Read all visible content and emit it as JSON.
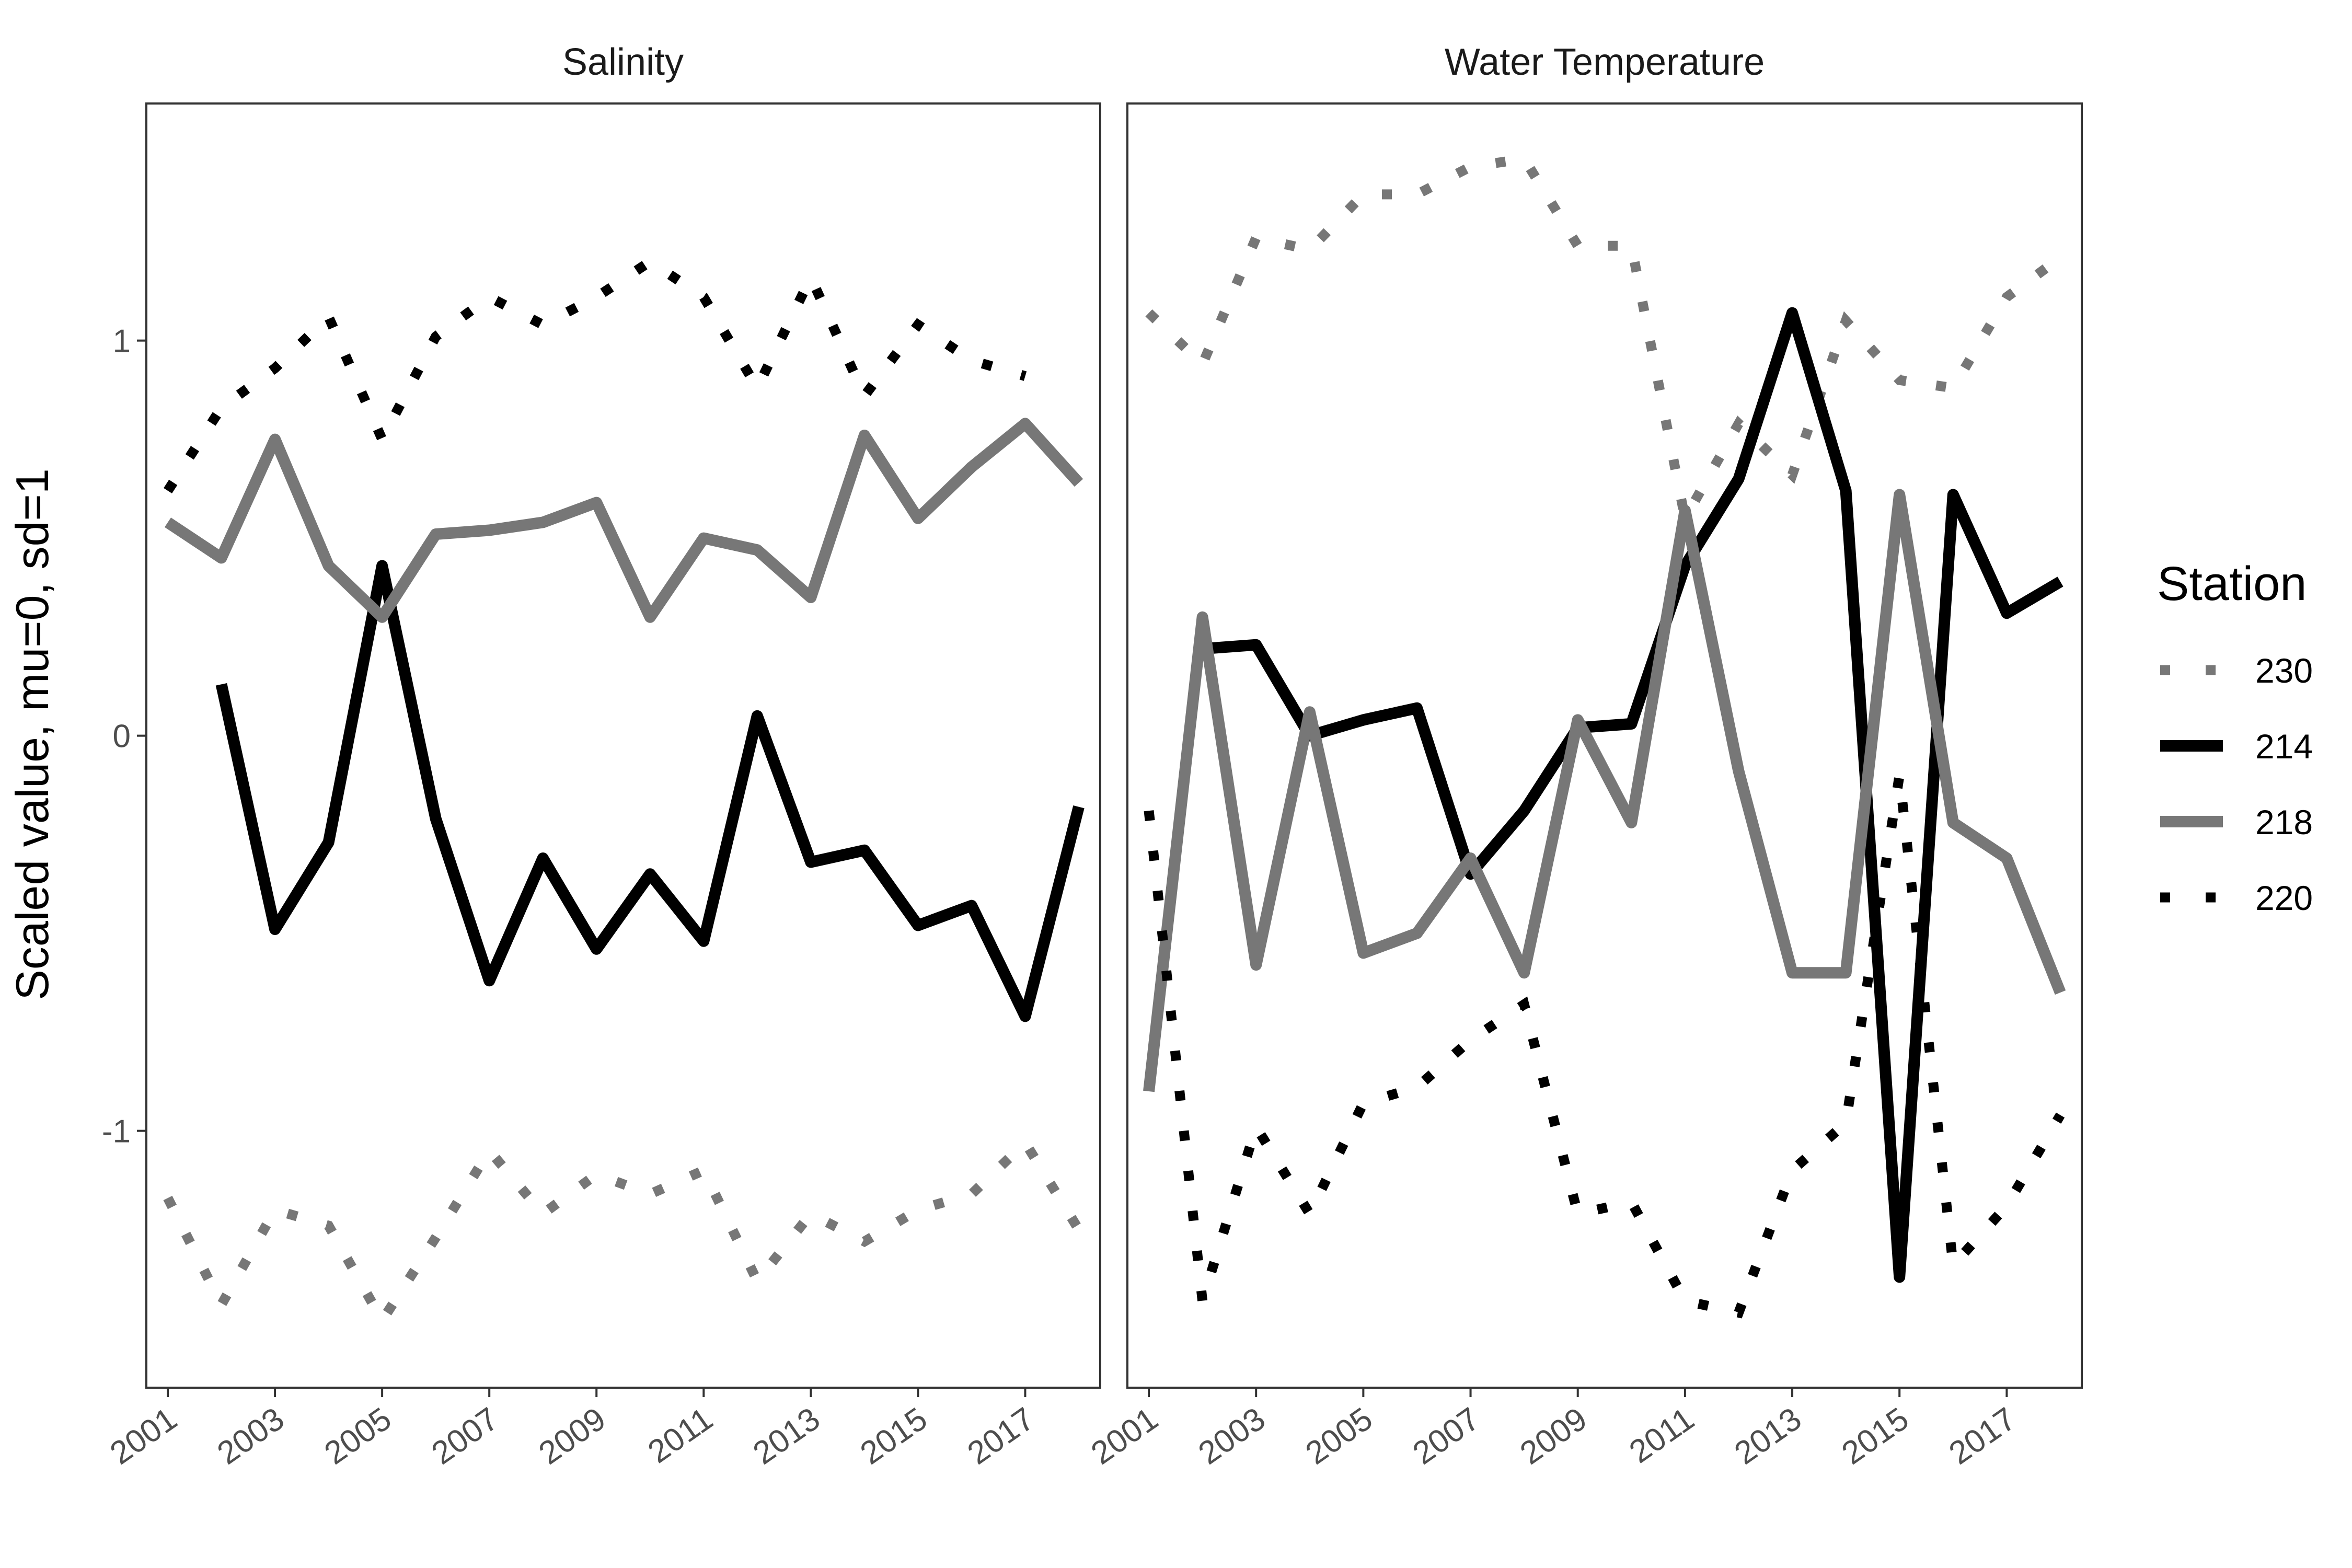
{
  "chart_data": {
    "type": "line",
    "ylabel": "Scaled value, mu=0, sd=1",
    "xlabel": "",
    "x": [
      2001,
      2002,
      2003,
      2004,
      2005,
      2006,
      2007,
      2008,
      2009,
      2010,
      2011,
      2012,
      2013,
      2014,
      2015,
      2016,
      2017,
      2018
    ],
    "x_tick_labels": [
      "2001",
      "2003",
      "2005",
      "2007",
      "2009",
      "2011",
      "2013",
      "2015",
      "2017"
    ],
    "x_tick_values": [
      2001,
      2003,
      2005,
      2007,
      2009,
      2011,
      2013,
      2015,
      2017
    ],
    "xlim": [
      2000.6,
      2018.4
    ],
    "y_tick_labels": [
      "1",
      "0",
      "-1"
    ],
    "y_tick_values": [
      1,
      0,
      -1
    ],
    "ylim": [
      -1.65,
      1.6
    ],
    "grid": false,
    "legend": {
      "title": "Station",
      "position": "right",
      "entries": [
        {
          "label": "230",
          "color": "#777777",
          "style": "dotted"
        },
        {
          "label": "214",
          "color": "#000000",
          "style": "solid"
        },
        {
          "label": "218",
          "color": "#777777",
          "style": "solid"
        },
        {
          "label": "220",
          "color": "#000000",
          "style": "dotted"
        }
      ]
    },
    "panels": [
      {
        "title": "Salinity",
        "series": [
          {
            "name": "230",
            "values": [
              -1.17,
              -1.44,
              -1.2,
              -1.24,
              -1.48,
              -1.27,
              -1.05,
              -1.21,
              -1.11,
              -1.16,
              -1.1,
              -1.38,
              -1.21,
              -1.28,
              -1.2,
              -1.16,
              -1.03,
              -1.25
            ]
          },
          {
            "name": "214",
            "values": [
              null,
              0.13,
              -0.49,
              -0.27,
              0.43,
              -0.21,
              -0.62,
              -0.31,
              -0.54,
              -0.35,
              -0.52,
              0.05,
              -0.32,
              -0.29,
              -0.48,
              -0.43,
              -0.71,
              -0.18
            ]
          },
          {
            "name": "218",
            "values": [
              0.54,
              0.45,
              0.75,
              0.43,
              0.3,
              0.51,
              0.52,
              0.54,
              0.59,
              0.3,
              0.5,
              0.47,
              0.35,
              0.76,
              0.55,
              0.68,
              0.79,
              0.64
            ]
          },
          {
            "name": "220",
            "values": [
              0.62,
              0.83,
              0.93,
              1.06,
              0.75,
              1.01,
              1.11,
              1.04,
              1.11,
              1.2,
              1.11,
              0.88,
              1.16,
              0.86,
              1.04,
              0.95,
              0.91,
              null
            ]
          }
        ]
      },
      {
        "title": "Water Temperature",
        "series": [
          {
            "name": "230",
            "values": [
              1.07,
              0.94,
              1.26,
              1.23,
              1.37,
              1.37,
              1.44,
              1.46,
              1.24,
              1.24,
              0.55,
              0.79,
              0.66,
              1.05,
              0.9,
              0.88,
              1.11,
              1.21
            ]
          },
          {
            "name": "214",
            "values": [
              null,
              0.22,
              0.23,
              0.0,
              0.04,
              0.07,
              -0.35,
              -0.19,
              0.02,
              0.03,
              0.43,
              0.65,
              1.07,
              0.62,
              -1.37,
              0.61,
              0.31,
              0.39
            ]
          },
          {
            "name": "218",
            "values": [
              -0.9,
              0.3,
              -0.58,
              0.06,
              -0.55,
              -0.5,
              -0.31,
              -0.6,
              0.04,
              -0.22,
              0.57,
              -0.09,
              -0.6,
              -0.6,
              0.61,
              -0.22,
              -0.31,
              -0.65
            ]
          },
          {
            "name": "220",
            "values": [
              -0.19,
              -1.43,
              -0.99,
              -1.21,
              -0.93,
              -0.89,
              -0.77,
              -0.68,
              -1.21,
              -1.18,
              -1.43,
              -1.46,
              -1.1,
              -0.98,
              -0.1,
              -1.34,
              -1.19,
              -0.96
            ]
          }
        ]
      }
    ]
  }
}
